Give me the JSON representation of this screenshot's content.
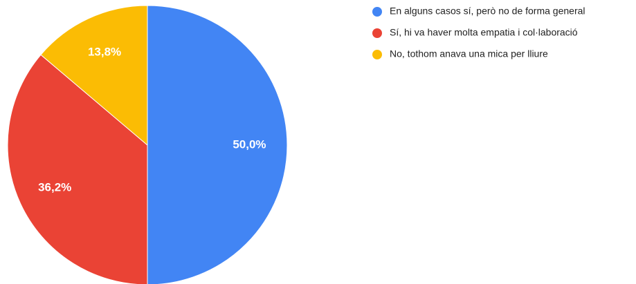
{
  "chart_data": {
    "type": "pie",
    "categories": [
      "En alguns casos sí, però no de forma general",
      "Sí, hi va haver molta empatia i col·laboració",
      "No, tothom anava una mica per lliure"
    ],
    "values": [
      50.0,
      36.2,
      13.8
    ],
    "value_labels": [
      "50,0%",
      "36,2%",
      "13,8%"
    ],
    "colors": [
      "#4285f4",
      "#ea4335",
      "#fbbc04"
    ],
    "legend": "right"
  }
}
